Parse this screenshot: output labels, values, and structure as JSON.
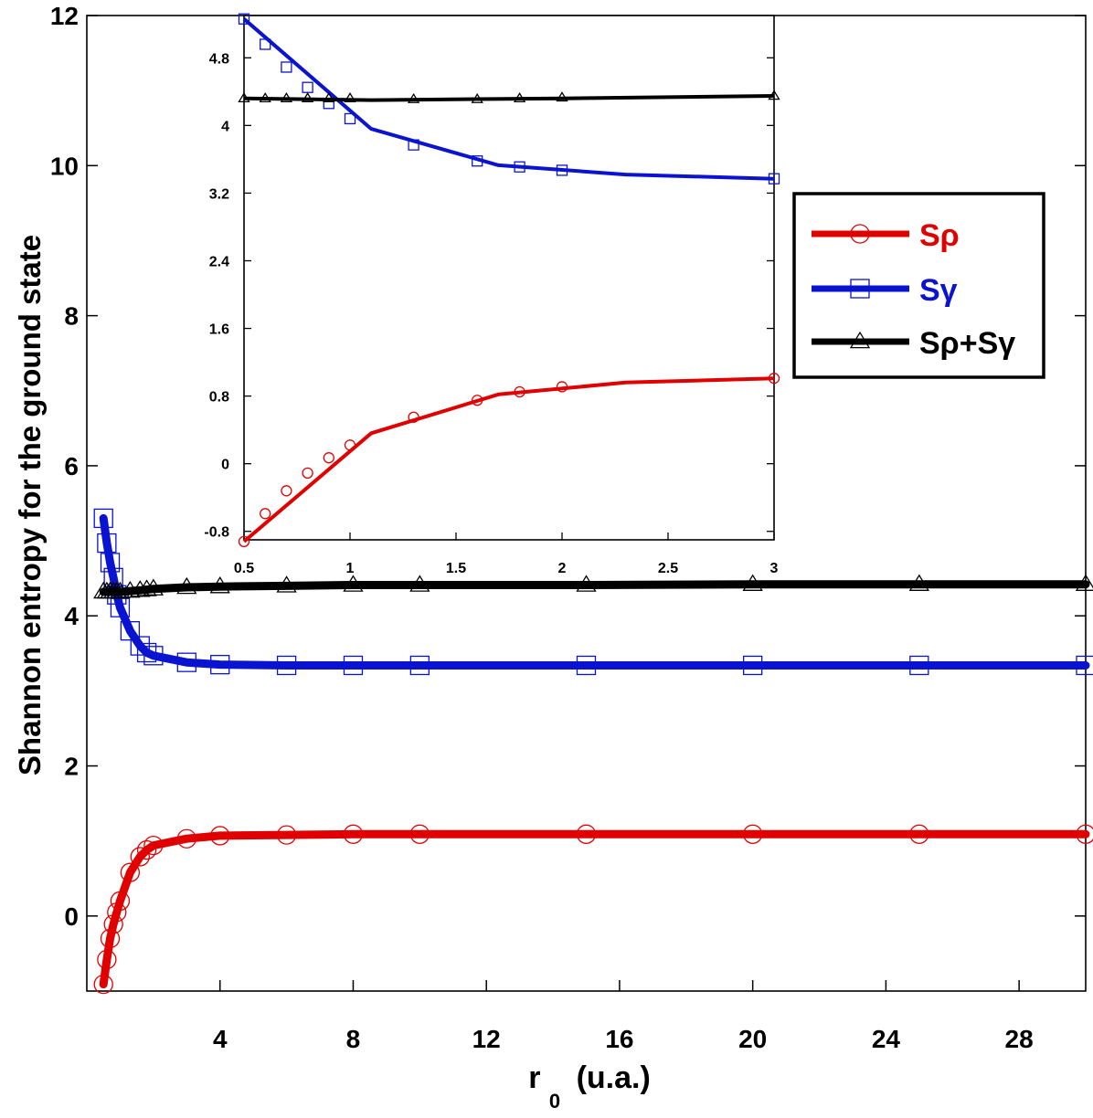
{
  "chart_data": [
    {
      "id": "main",
      "type": "line",
      "title": "",
      "ylabel": "Shannon entropy for the ground state",
      "xlabel_main": "r",
      "xlabel_sub": "0",
      "xlabel_units": "(u.a.)",
      "xlim": [
        0,
        30
      ],
      "ylim": [
        -1,
        12
      ],
      "xticks": [
        4,
        8,
        12,
        16,
        20,
        24,
        28
      ],
      "yticks": [
        0,
        2,
        4,
        6,
        8,
        10,
        12
      ],
      "series": [
        {
          "name": "Sρ",
          "color": "#e00000",
          "marker": "circle",
          "x": [
            0.5,
            0.6,
            0.7,
            0.8,
            0.9,
            1.0,
            1.3,
            1.6,
            1.8,
            2.0,
            3.0,
            4.0,
            6.0,
            8.0,
            10.0,
            15.0,
            20.0,
            25.0,
            30.0
          ],
          "y": [
            -0.91,
            -0.58,
            -0.3,
            -0.11,
            0.05,
            0.2,
            0.58,
            0.79,
            0.88,
            0.94,
            1.03,
            1.07,
            1.08,
            1.09,
            1.09,
            1.09,
            1.09,
            1.09,
            1.09
          ]
        },
        {
          "name": "Sγ",
          "color": "#0a14d0",
          "marker": "square",
          "x": [
            0.5,
            0.6,
            0.7,
            0.8,
            0.9,
            1.0,
            1.3,
            1.6,
            1.8,
            2.0,
            3.0,
            4.0,
            6.0,
            8.0,
            10.0,
            15.0,
            20.0,
            25.0,
            30.0
          ],
          "y": [
            5.3,
            4.97,
            4.71,
            4.51,
            4.28,
            4.11,
            3.8,
            3.6,
            3.51,
            3.47,
            3.38,
            3.35,
            3.34,
            3.34,
            3.34,
            3.34,
            3.34,
            3.34,
            3.34
          ]
        },
        {
          "name": "Sρ+Sγ",
          "color": "#000000",
          "marker": "triangle",
          "x": [
            0.5,
            0.6,
            0.7,
            0.8,
            0.9,
            1.0,
            1.3,
            1.6,
            1.8,
            2.0,
            3.0,
            4.0,
            6.0,
            8.0,
            10.0,
            15.0,
            20.0,
            25.0,
            30.0
          ],
          "y": [
            4.32,
            4.32,
            4.32,
            4.32,
            4.32,
            4.32,
            4.33,
            4.34,
            4.35,
            4.36,
            4.38,
            4.39,
            4.4,
            4.41,
            4.41,
            4.41,
            4.42,
            4.42,
            4.42
          ]
        }
      ]
    },
    {
      "id": "inset",
      "type": "line",
      "xlim": [
        0.5,
        3
      ],
      "ylim": [
        -0.9,
        5.3
      ],
      "xticks": [
        0.5,
        1,
        1.5,
        2,
        2.5,
        3
      ],
      "xtick_labels": [
        "0.5",
        "1",
        "1.5",
        "2",
        "2.5",
        "3"
      ],
      "yticks": [
        -0.8,
        0,
        0.8,
        1.6,
        2.4,
        3.2,
        4,
        4.8
      ],
      "ytick_labels": [
        "-0.8",
        "0",
        "0.8",
        "1.6",
        "2.4",
        "3.2",
        "4",
        "4.8"
      ],
      "series": [
        {
          "name": "Sρ",
          "color": "#e00000",
          "marker": "circle",
          "line_x": [
            0.5,
            1.1,
            1.7,
            2.3,
            3.0
          ],
          "line_y": [
            -0.92,
            0.36,
            0.82,
            0.96,
            1.01
          ],
          "x": [
            0.5,
            0.6,
            0.7,
            0.8,
            0.9,
            1.0,
            1.3,
            1.6,
            1.8,
            2.0,
            3.0
          ],
          "y": [
            -0.92,
            -0.59,
            -0.32,
            -0.11,
            0.07,
            0.22,
            0.55,
            0.75,
            0.85,
            0.91,
            1.01
          ]
        },
        {
          "name": "Sγ",
          "color": "#0a14d0",
          "marker": "square",
          "line_x": [
            0.5,
            1.1,
            1.7,
            2.3,
            3.0
          ],
          "line_y": [
            5.26,
            3.96,
            3.53,
            3.42,
            3.37
          ],
          "x": [
            0.5,
            0.6,
            0.7,
            0.8,
            0.9,
            1.0,
            1.3,
            1.6,
            1.8,
            2.0,
            3.0
          ],
          "y": [
            5.26,
            4.96,
            4.69,
            4.45,
            4.26,
            4.08,
            3.77,
            3.58,
            3.51,
            3.47,
            3.37
          ]
        },
        {
          "name": "Sρ+Sγ",
          "color": "#000000",
          "marker": "triangle",
          "line_x": [
            0.5,
            1.1,
            2.0,
            3.0
          ],
          "line_y": [
            4.32,
            4.3,
            4.32,
            4.35
          ],
          "x": [
            0.5,
            0.6,
            0.7,
            0.8,
            0.9,
            1.0,
            1.3,
            1.6,
            1.8,
            2.0,
            3.0
          ],
          "y": [
            4.32,
            4.32,
            4.32,
            4.32,
            4.32,
            4.32,
            4.31,
            4.31,
            4.32,
            4.33,
            4.35
          ]
        }
      ]
    }
  ],
  "legend": {
    "position": "right",
    "entries": [
      {
        "label": "Sρ",
        "color": "#e00000",
        "marker": "circle"
      },
      {
        "label": "Sγ",
        "color": "#0a14d0",
        "marker": "square"
      },
      {
        "label": "Sρ+Sγ",
        "color": "#000000",
        "marker": "triangle"
      }
    ]
  }
}
